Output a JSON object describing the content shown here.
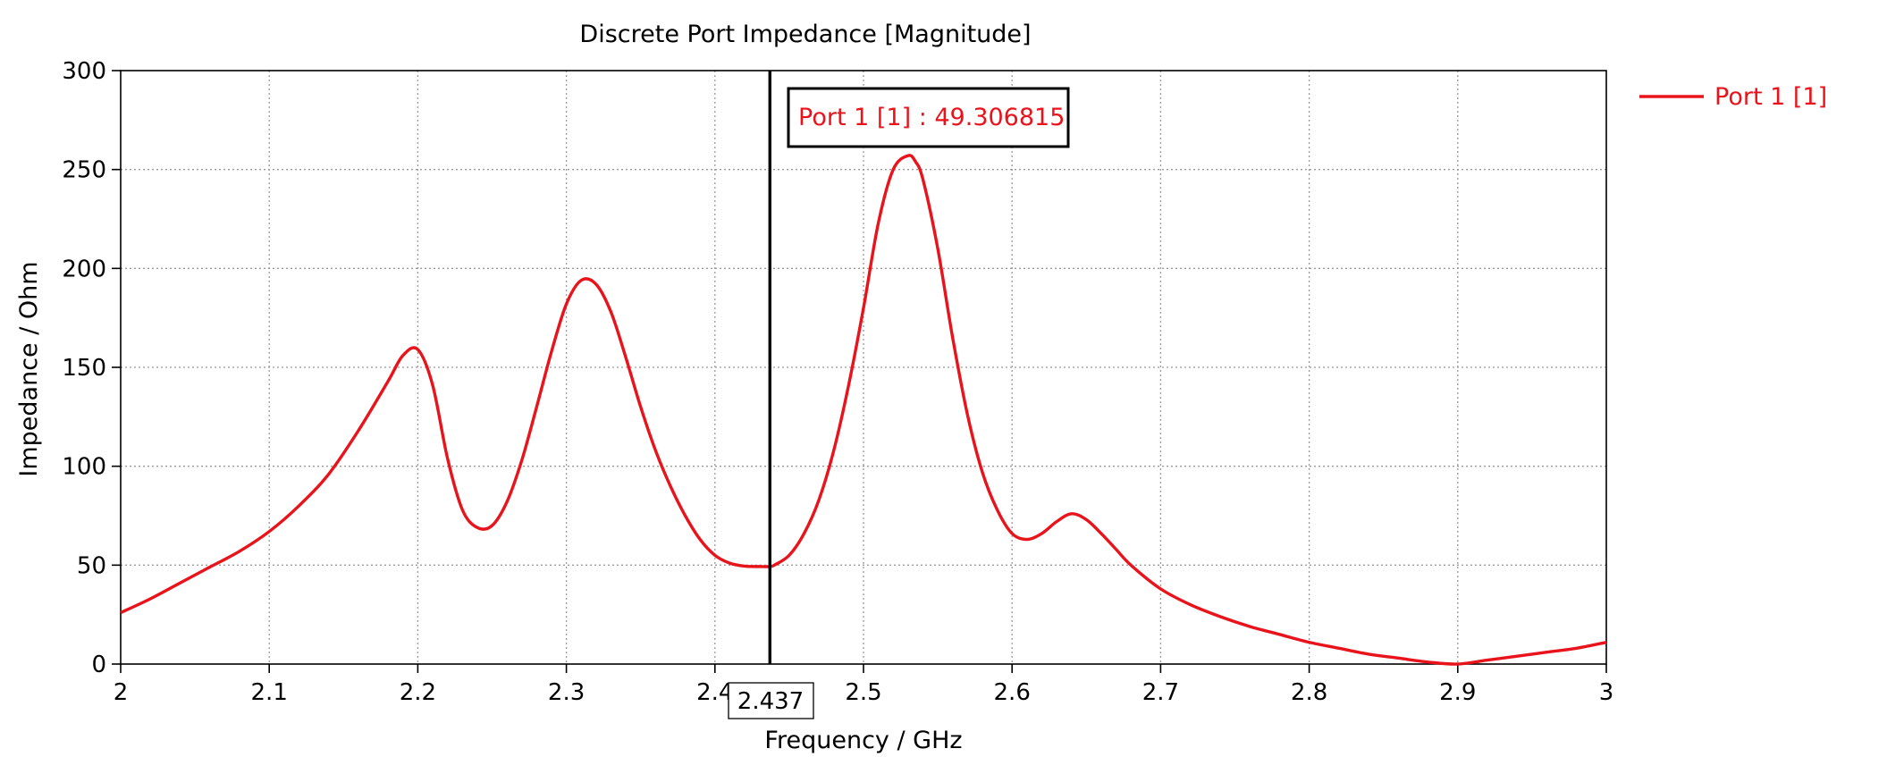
{
  "chart_data": {
    "type": "line",
    "title": "Discrete Port Impedance [Magnitude]",
    "xlabel": "Frequency / GHz",
    "ylabel": "Impedance / Ohm",
    "xlim": [
      2,
      3
    ],
    "ylim": [
      0,
      300
    ],
    "x_ticks": [
      "2",
      "2.1",
      "2.2",
      "2.3",
      "2.4",
      "2.5",
      "2.6",
      "2.7",
      "2.8",
      "2.9",
      "3"
    ],
    "y_ticks": [
      "0",
      "50",
      "100",
      "150",
      "200",
      "250",
      "300"
    ],
    "grid": true,
    "legend_position": "right",
    "series": [
      {
        "name": "Port 1 [1]",
        "color": "#e8131b",
        "x": [
          2.0,
          2.02,
          2.04,
          2.06,
          2.08,
          2.1,
          2.12,
          2.14,
          2.16,
          2.18,
          2.19,
          2.2,
          2.21,
          2.22,
          2.23,
          2.24,
          2.25,
          2.26,
          2.27,
          2.28,
          2.29,
          2.3,
          2.31,
          2.32,
          2.33,
          2.34,
          2.35,
          2.36,
          2.37,
          2.38,
          2.39,
          2.4,
          2.41,
          2.42,
          2.43,
          2.437,
          2.44,
          2.45,
          2.46,
          2.47,
          2.48,
          2.49,
          2.5,
          2.51,
          2.52,
          2.53,
          2.535,
          2.54,
          2.55,
          2.56,
          2.57,
          2.58,
          2.59,
          2.6,
          2.61,
          2.62,
          2.63,
          2.64,
          2.65,
          2.66,
          2.67,
          2.68,
          2.7,
          2.72,
          2.74,
          2.76,
          2.78,
          2.8,
          2.82,
          2.84,
          2.86,
          2.88,
          2.9,
          2.92,
          2.94,
          2.96,
          2.98,
          3.0
        ],
        "y": [
          26,
          33,
          41,
          49,
          57,
          67,
          80,
          96,
          118,
          143,
          156,
          159,
          141,
          104,
          78,
          69,
          70,
          82,
          103,
          130,
          158,
          182,
          194,
          192,
          178,
          155,
          130,
          108,
          90,
          75,
          63,
          55,
          51,
          49.5,
          49.3,
          49.3,
          50,
          55,
          66,
          83,
          108,
          141,
          180,
          223,
          250,
          257,
          254,
          245,
          210,
          165,
          126,
          97,
          78,
          66,
          63,
          66,
          72,
          76,
          73,
          66,
          58,
          50,
          38,
          30,
          24,
          19,
          15,
          11,
          8,
          5,
          3,
          1,
          0,
          2,
          4,
          6,
          8,
          11
        ]
      }
    ],
    "marker": {
      "x": 2.437,
      "x_label": "2.437",
      "label": "Port 1 [1] : 49.306815"
    }
  }
}
